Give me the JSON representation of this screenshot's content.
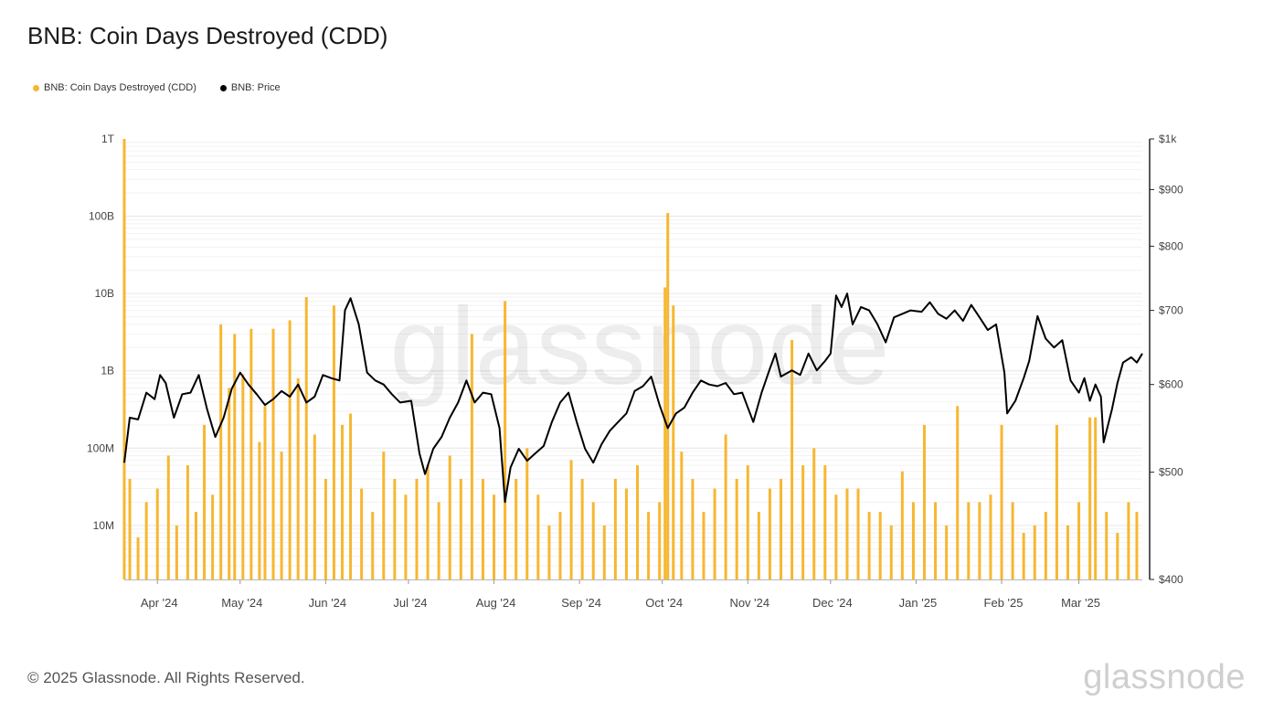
{
  "title": "BNB: Coin Days Destroyed (CDD)",
  "legend": [
    {
      "label": "BNB: Coin Days Destroyed (CDD)",
      "color": "#f7b731"
    },
    {
      "label": "BNB: Price",
      "color": "#000000"
    }
  ],
  "footer": "© 2025 Glassnode. All Rights Reserved.",
  "brand": "glassnode",
  "watermark": "glassnode",
  "chart_data": {
    "type": "bar",
    "x_range": [
      "2024-03-20",
      "2025-03-24"
    ],
    "x_ticks": [
      {
        "label": "Apr '24",
        "date": "2024-04-01"
      },
      {
        "label": "May '24",
        "date": "2024-05-01"
      },
      {
        "label": "Jun '24",
        "date": "2024-06-01"
      },
      {
        "label": "Jul '24",
        "date": "2024-07-01"
      },
      {
        "label": "Aug '24",
        "date": "2024-08-01"
      },
      {
        "label": "Sep '24",
        "date": "2024-09-01"
      },
      {
        "label": "Oct '24",
        "date": "2024-10-01"
      },
      {
        "label": "Nov '24",
        "date": "2024-11-01"
      },
      {
        "label": "Dec '24",
        "date": "2024-12-01"
      },
      {
        "label": "Jan '25",
        "date": "2025-01-01"
      },
      {
        "label": "Feb '25",
        "date": "2025-02-01"
      },
      {
        "label": "Mar '25",
        "date": "2025-03-01"
      }
    ],
    "y_left": {
      "scale": "log",
      "range": [
        2000000,
        1000000000000
      ],
      "ticks": [
        {
          "label": "10M",
          "value": 10000000
        },
        {
          "label": "100M",
          "value": 100000000
        },
        {
          "label": "1B",
          "value": 1000000000
        },
        {
          "label": "10B",
          "value": 10000000000
        },
        {
          "label": "100B",
          "value": 100000000000
        },
        {
          "label": "1T",
          "value": 1000000000000
        }
      ]
    },
    "y_right": {
      "scale": "log",
      "range": [
        400,
        1000
      ],
      "ticks": [
        {
          "label": "$400",
          "value": 400
        },
        {
          "label": "$500",
          "value": 500
        },
        {
          "label": "$600",
          "value": 600
        },
        {
          "label": "$700",
          "value": 700
        },
        {
          "label": "$800",
          "value": 800
        },
        {
          "label": "$900",
          "value": 900
        },
        {
          "label": "$1k",
          "value": 1000
        }
      ]
    },
    "series": [
      {
        "name": "BNB: Coin Days Destroyed (CDD)",
        "type": "bar",
        "color": "#f7b731",
        "points": [
          [
            "2024-03-20",
            1000000000000
          ],
          [
            "2024-03-22",
            40000000
          ],
          [
            "2024-03-25",
            7000000
          ],
          [
            "2024-03-28",
            20000000
          ],
          [
            "2024-04-01",
            30000000
          ],
          [
            "2024-04-05",
            80000000
          ],
          [
            "2024-04-08",
            10000000
          ],
          [
            "2024-04-12",
            60000000
          ],
          [
            "2024-04-15",
            15000000
          ],
          [
            "2024-04-18",
            200000000
          ],
          [
            "2024-04-21",
            25000000
          ],
          [
            "2024-04-24",
            4000000000
          ],
          [
            "2024-04-27",
            600000000
          ],
          [
            "2024-04-29",
            3000000000
          ],
          [
            "2024-05-02",
            900000000
          ],
          [
            "2024-05-05",
            3500000000
          ],
          [
            "2024-05-08",
            120000000
          ],
          [
            "2024-05-10",
            350000000
          ],
          [
            "2024-05-13",
            3500000000
          ],
          [
            "2024-05-16",
            90000000
          ],
          [
            "2024-05-19",
            4500000000
          ],
          [
            "2024-05-22",
            800000000
          ],
          [
            "2024-05-25",
            9000000000
          ],
          [
            "2024-05-28",
            150000000
          ],
          [
            "2024-06-01",
            40000000
          ],
          [
            "2024-06-04",
            7000000000
          ],
          [
            "2024-06-07",
            200000000
          ],
          [
            "2024-06-10",
            280000000
          ],
          [
            "2024-06-14",
            30000000
          ],
          [
            "2024-06-18",
            15000000
          ],
          [
            "2024-06-22",
            90000000
          ],
          [
            "2024-06-26",
            40000000
          ],
          [
            "2024-06-30",
            25000000
          ],
          [
            "2024-07-04",
            40000000
          ],
          [
            "2024-07-08",
            60000000
          ],
          [
            "2024-07-12",
            20000000
          ],
          [
            "2024-07-16",
            80000000
          ],
          [
            "2024-07-20",
            40000000
          ],
          [
            "2024-07-24",
            3000000000
          ],
          [
            "2024-07-28",
            40000000
          ],
          [
            "2024-08-01",
            25000000
          ],
          [
            "2024-08-05",
            8000000000
          ],
          [
            "2024-08-09",
            40000000
          ],
          [
            "2024-08-13",
            100000000
          ],
          [
            "2024-08-17",
            25000000
          ],
          [
            "2024-08-21",
            10000000
          ],
          [
            "2024-08-25",
            15000000
          ],
          [
            "2024-08-29",
            70000000
          ],
          [
            "2024-09-02",
            40000000
          ],
          [
            "2024-09-06",
            20000000
          ],
          [
            "2024-09-10",
            10000000
          ],
          [
            "2024-09-14",
            40000000
          ],
          [
            "2024-09-18",
            30000000
          ],
          [
            "2024-09-22",
            60000000
          ],
          [
            "2024-09-26",
            15000000
          ],
          [
            "2024-09-30",
            20000000
          ],
          [
            "2024-10-02",
            12000000000
          ],
          [
            "2024-10-03",
            110000000000
          ],
          [
            "2024-10-05",
            7000000000
          ],
          [
            "2024-10-08",
            90000000
          ],
          [
            "2024-10-12",
            40000000
          ],
          [
            "2024-10-16",
            15000000
          ],
          [
            "2024-10-20",
            30000000
          ],
          [
            "2024-10-24",
            150000000
          ],
          [
            "2024-10-28",
            40000000
          ],
          [
            "2024-11-01",
            60000000
          ],
          [
            "2024-11-05",
            15000000
          ],
          [
            "2024-11-09",
            30000000
          ],
          [
            "2024-11-13",
            40000000
          ],
          [
            "2024-11-17",
            2500000000
          ],
          [
            "2024-11-21",
            60000000
          ],
          [
            "2024-11-25",
            100000000
          ],
          [
            "2024-11-29",
            60000000
          ],
          [
            "2024-12-03",
            25000000
          ],
          [
            "2024-12-07",
            30000000
          ],
          [
            "2024-12-11",
            30000000
          ],
          [
            "2024-12-15",
            15000000
          ],
          [
            "2024-12-19",
            15000000
          ],
          [
            "2024-12-23",
            10000000
          ],
          [
            "2024-12-27",
            50000000
          ],
          [
            "2024-12-31",
            20000000
          ],
          [
            "2025-01-04",
            200000000
          ],
          [
            "2025-01-08",
            20000000
          ],
          [
            "2025-01-12",
            10000000
          ],
          [
            "2025-01-16",
            350000000
          ],
          [
            "2025-01-20",
            20000000
          ],
          [
            "2025-01-24",
            20000000
          ],
          [
            "2025-01-28",
            25000000
          ],
          [
            "2025-02-01",
            200000000
          ],
          [
            "2025-02-05",
            20000000
          ],
          [
            "2025-02-09",
            8000000
          ],
          [
            "2025-02-13",
            10000000
          ],
          [
            "2025-02-17",
            15000000
          ],
          [
            "2025-02-21",
            200000000
          ],
          [
            "2025-02-25",
            10000000
          ],
          [
            "2025-03-01",
            20000000
          ],
          [
            "2025-03-05",
            250000000
          ],
          [
            "2025-03-07",
            250000000
          ],
          [
            "2025-03-11",
            15000000
          ],
          [
            "2025-03-15",
            8000000
          ],
          [
            "2025-03-19",
            20000000
          ],
          [
            "2025-03-22",
            15000000
          ]
        ]
      },
      {
        "name": "BNB: Price",
        "type": "line",
        "color": "#000000",
        "points": [
          [
            "2024-03-20",
            510
          ],
          [
            "2024-03-22",
            560
          ],
          [
            "2024-03-25",
            558
          ],
          [
            "2024-03-28",
            590
          ],
          [
            "2024-03-31",
            582
          ],
          [
            "2024-04-02",
            612
          ],
          [
            "2024-04-04",
            602
          ],
          [
            "2024-04-07",
            560
          ],
          [
            "2024-04-10",
            588
          ],
          [
            "2024-04-13",
            590
          ],
          [
            "2024-04-16",
            612
          ],
          [
            "2024-04-19",
            570
          ],
          [
            "2024-04-22",
            538
          ],
          [
            "2024-04-25",
            560
          ],
          [
            "2024-04-28",
            595
          ],
          [
            "2024-05-01",
            615
          ],
          [
            "2024-05-04",
            600
          ],
          [
            "2024-05-07",
            588
          ],
          [
            "2024-05-10",
            575
          ],
          [
            "2024-05-13",
            582
          ],
          [
            "2024-05-16",
            592
          ],
          [
            "2024-05-19",
            585
          ],
          [
            "2024-05-22",
            600
          ],
          [
            "2024-05-25",
            578
          ],
          [
            "2024-05-28",
            585
          ],
          [
            "2024-05-31",
            612
          ],
          [
            "2024-06-03",
            608
          ],
          [
            "2024-06-06",
            605
          ],
          [
            "2024-06-08",
            700
          ],
          [
            "2024-06-10",
            718
          ],
          [
            "2024-06-13",
            680
          ],
          [
            "2024-06-16",
            615
          ],
          [
            "2024-06-19",
            605
          ],
          [
            "2024-06-22",
            600
          ],
          [
            "2024-06-25",
            588
          ],
          [
            "2024-06-28",
            578
          ],
          [
            "2024-07-02",
            580
          ],
          [
            "2024-07-05",
            520
          ],
          [
            "2024-07-07",
            498
          ],
          [
            "2024-07-10",
            525
          ],
          [
            "2024-07-13",
            538
          ],
          [
            "2024-07-16",
            560
          ],
          [
            "2024-07-19",
            578
          ],
          [
            "2024-07-22",
            605
          ],
          [
            "2024-07-25",
            578
          ],
          [
            "2024-07-28",
            590
          ],
          [
            "2024-07-31",
            588
          ],
          [
            "2024-08-03",
            548
          ],
          [
            "2024-08-05",
            470
          ],
          [
            "2024-08-07",
            505
          ],
          [
            "2024-08-10",
            525
          ],
          [
            "2024-08-13",
            512
          ],
          [
            "2024-08-16",
            520
          ],
          [
            "2024-08-19",
            528
          ],
          [
            "2024-08-22",
            555
          ],
          [
            "2024-08-25",
            578
          ],
          [
            "2024-08-28",
            590
          ],
          [
            "2024-08-31",
            555
          ],
          [
            "2024-09-03",
            525
          ],
          [
            "2024-09-06",
            510
          ],
          [
            "2024-09-09",
            530
          ],
          [
            "2024-09-12",
            545
          ],
          [
            "2024-09-15",
            555
          ],
          [
            "2024-09-18",
            565
          ],
          [
            "2024-09-21",
            592
          ],
          [
            "2024-09-24",
            598
          ],
          [
            "2024-09-27",
            610
          ],
          [
            "2024-09-30",
            575
          ],
          [
            "2024-10-03",
            548
          ],
          [
            "2024-10-06",
            565
          ],
          [
            "2024-10-09",
            572
          ],
          [
            "2024-10-12",
            590
          ],
          [
            "2024-10-15",
            605
          ],
          [
            "2024-10-18",
            600
          ],
          [
            "2024-10-21",
            598
          ],
          [
            "2024-10-24",
            602
          ],
          [
            "2024-10-27",
            588
          ],
          [
            "2024-10-30",
            590
          ],
          [
            "2024-11-03",
            555
          ],
          [
            "2024-11-06",
            590
          ],
          [
            "2024-11-09",
            620
          ],
          [
            "2024-11-11",
            640
          ],
          [
            "2024-11-13",
            610
          ],
          [
            "2024-11-17",
            618
          ],
          [
            "2024-11-20",
            612
          ],
          [
            "2024-11-23",
            640
          ],
          [
            "2024-11-26",
            618
          ],
          [
            "2024-11-29",
            630
          ],
          [
            "2024-12-01",
            640
          ],
          [
            "2024-12-03",
            722
          ],
          [
            "2024-12-05",
            705
          ],
          [
            "2024-12-07",
            725
          ],
          [
            "2024-12-09",
            680
          ],
          [
            "2024-12-12",
            705
          ],
          [
            "2024-12-15",
            700
          ],
          [
            "2024-12-18",
            680
          ],
          [
            "2024-12-21",
            655
          ],
          [
            "2024-12-24",
            690
          ],
          [
            "2024-12-27",
            695
          ],
          [
            "2024-12-30",
            700
          ],
          [
            "2025-01-03",
            698
          ],
          [
            "2025-01-06",
            712
          ],
          [
            "2025-01-09",
            695
          ],
          [
            "2025-01-12",
            688
          ],
          [
            "2025-01-15",
            700
          ],
          [
            "2025-01-18",
            685
          ],
          [
            "2025-01-21",
            708
          ],
          [
            "2025-01-24",
            690
          ],
          [
            "2025-01-27",
            672
          ],
          [
            "2025-01-30",
            680
          ],
          [
            "2025-02-02",
            615
          ],
          [
            "2025-02-03",
            565
          ],
          [
            "2025-02-06",
            580
          ],
          [
            "2025-02-09",
            608
          ],
          [
            "2025-02-11",
            630
          ],
          [
            "2025-02-14",
            692
          ],
          [
            "2025-02-17",
            660
          ],
          [
            "2025-02-20",
            648
          ],
          [
            "2025-02-23",
            658
          ],
          [
            "2025-02-26",
            605
          ],
          [
            "2025-03-01",
            590
          ],
          [
            "2025-03-03",
            608
          ],
          [
            "2025-03-05",
            580
          ],
          [
            "2025-03-07",
            600
          ],
          [
            "2025-03-09",
            585
          ],
          [
            "2025-03-10",
            532
          ],
          [
            "2025-03-13",
            570
          ],
          [
            "2025-03-15",
            602
          ],
          [
            "2025-03-17",
            628
          ],
          [
            "2025-03-20",
            635
          ],
          [
            "2025-03-22",
            628
          ],
          [
            "2025-03-24",
            640
          ]
        ]
      }
    ]
  }
}
